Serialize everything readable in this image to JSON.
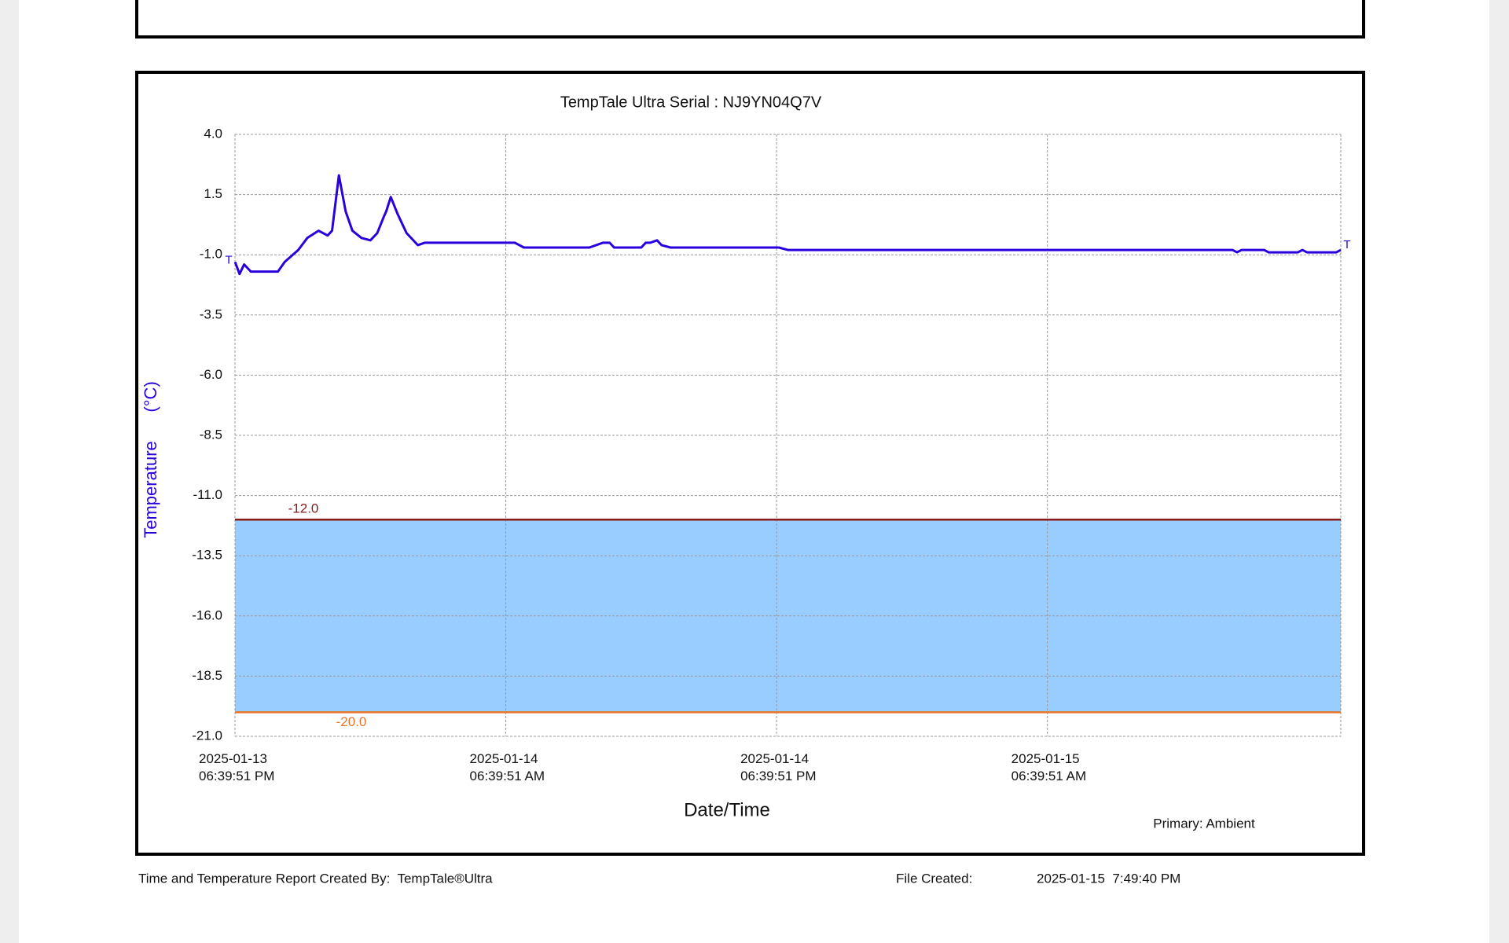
{
  "chart_data": {
    "type": "line",
    "title": "TempTale Ultra  Serial : NJ9YN04Q7V",
    "ylabel": "Temperature      (°C)",
    "xlabel": "Date/Time",
    "note": "Primary: Ambient",
    "start_marker": "T",
    "end_marker": "T",
    "xlim": [
      "2025-01-13T18:39:51",
      "2025-01-15T19:40:00"
    ],
    "xticks": [
      {
        "value": "2025-01-13T18:39:51",
        "label": "2025-01-13\n06:39:51 PM"
      },
      {
        "value": "2025-01-14T06:39:51",
        "label": "2025-01-14\n06:39:51 AM"
      },
      {
        "value": "2025-01-14T18:39:51",
        "label": "2025-01-14\n06:39:51 PM"
      },
      {
        "value": "2025-01-15T06:39:51",
        "label": "2025-01-15\n06:39:51 AM"
      }
    ],
    "ylim": [
      -21,
      4
    ],
    "yticks": [
      {
        "value": 4,
        "label": "4.0"
      },
      1.5,
      {
        "value": -1,
        "label": "-1.0"
      },
      -3.5,
      {
        "value": -6,
        "label": "-6.0"
      },
      -8.5,
      {
        "value": -11,
        "label": "-11.0"
      },
      -13.5,
      {
        "value": -16,
        "label": "-16.0"
      },
      -18.5,
      {
        "value": -21,
        "label": "-21.0"
      }
    ],
    "grid": true,
    "limits": [
      {
        "value": -12,
        "label": "-12.0",
        "color": "#8b1a1a"
      },
      {
        "value": -20,
        "label": "-20.0",
        "color": "#e8742a"
      }
    ],
    "band_color": "#99ccff",
    "series": [
      {
        "name": "Ambient",
        "color": "#2a00dd",
        "x": [
          "2025-01-13T18:40",
          "2025-01-13T18:52",
          "2025-01-13T19:04",
          "2025-01-13T19:22",
          "2025-01-13T19:40",
          "2025-01-13T20:34",
          "2025-01-13T20:52",
          "2025-01-13T21:28",
          "2025-01-13T21:52",
          "2025-01-13T22:22",
          "2025-01-13T22:46",
          "2025-01-13T22:58",
          "2025-01-13T23:16",
          "2025-01-13T23:34",
          "2025-01-13T23:52",
          "2025-01-14T00:16",
          "2025-01-14T00:40",
          "2025-01-14T00:58",
          "2025-01-14T01:16",
          "2025-01-14T01:22",
          "2025-01-14T01:34",
          "2025-01-14T01:52",
          "2025-01-14T02:16",
          "2025-01-14T02:46",
          "2025-01-14T03:04",
          "2025-01-14T03:22",
          "2025-01-14T03:40",
          "2025-01-14T07:04",
          "2025-01-14T07:28",
          "2025-01-14T10:22",
          "2025-01-14T10:58",
          "2025-01-14T11:16",
          "2025-01-14T11:28",
          "2025-01-14T12:40",
          "2025-01-14T12:52",
          "2025-01-14T13:04",
          "2025-01-14T13:22",
          "2025-01-14T13:34",
          "2025-01-14T13:58",
          "2025-01-14T18:46",
          "2025-01-14T19:10",
          "2025-01-15T14:52",
          "2025-01-15T15:04",
          "2025-01-15T15:16",
          "2025-01-15T16:16",
          "2025-01-15T16:28",
          "2025-01-15T17:46",
          "2025-01-15T17:58",
          "2025-01-15T18:10",
          "2025-01-15T19:28",
          "2025-01-15T19:40"
        ],
        "values": [
          -1.3,
          -1.8,
          -1.4,
          -1.7,
          -1.7,
          -1.7,
          -1.3,
          -0.8,
          -0.3,
          0.0,
          -0.2,
          0.0,
          2.3,
          0.8,
          0.0,
          -0.3,
          -0.4,
          -0.1,
          0.6,
          0.8,
          1.4,
          0.7,
          -0.1,
          -0.6,
          -0.5,
          -0.5,
          -0.5,
          -0.5,
          -0.7,
          -0.7,
          -0.5,
          -0.5,
          -0.7,
          -0.7,
          -0.5,
          -0.5,
          -0.4,
          -0.6,
          -0.7,
          -0.7,
          -0.8,
          -0.8,
          -0.9,
          -0.8,
          -0.8,
          -0.9,
          -0.9,
          -0.8,
          -0.9,
          -0.9,
          -0.8
        ]
      }
    ]
  },
  "footer": {
    "created_by": "Time and Temperature Report Created By:  TempTale®Ultra",
    "file_created_label": "File Created:",
    "file_created": "2025-01-15  7:49:40 PM"
  }
}
